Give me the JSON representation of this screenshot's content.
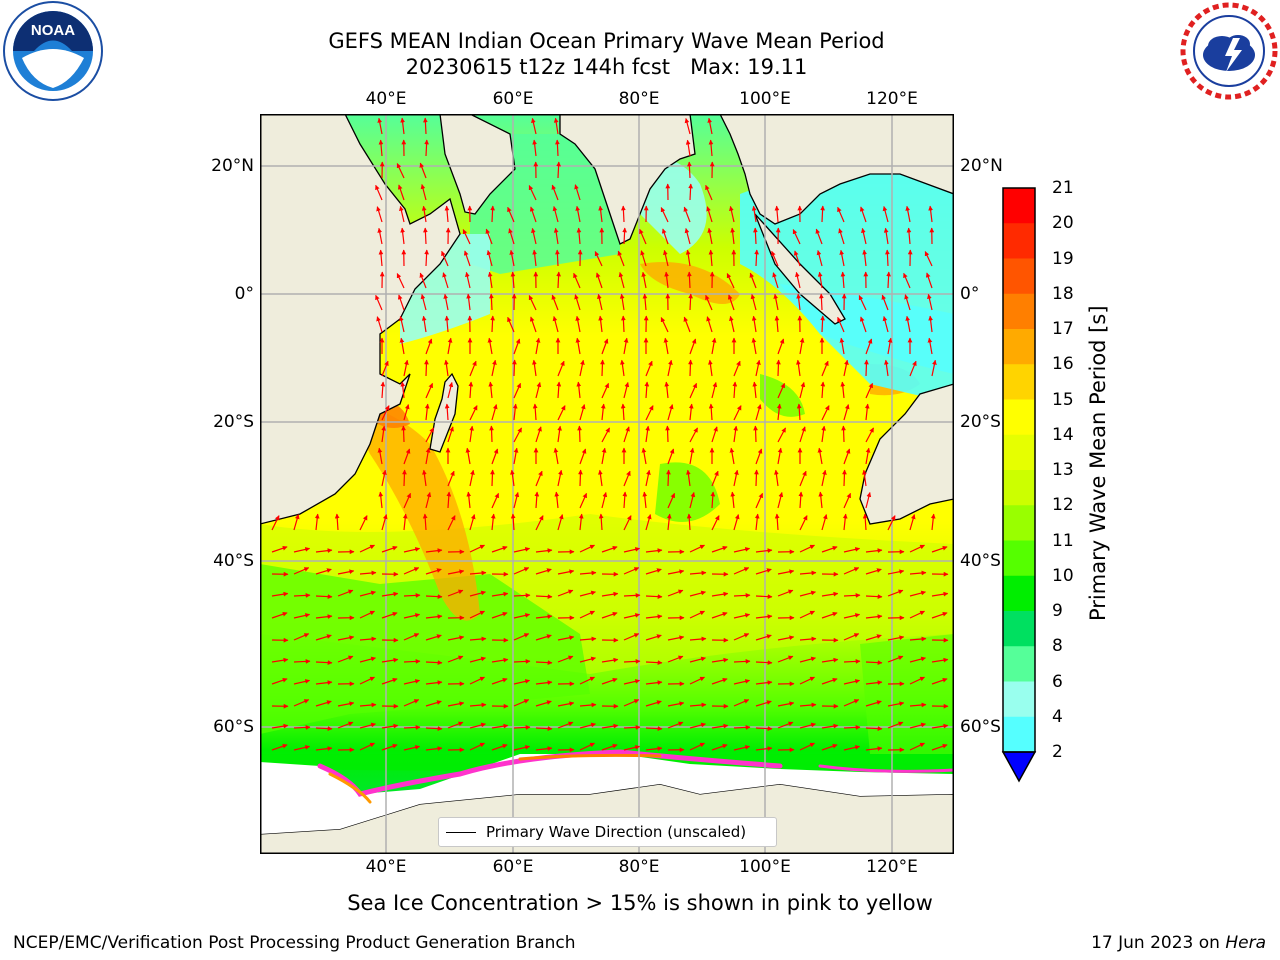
{
  "title_line1": "GEFS MEAN Indian Ocean Primary Wave Mean Period",
  "title_line2": "20230615 t12z 144h fcst   Max: 19.11",
  "lon_ticks": [
    "40°E",
    "60°E",
    "80°E",
    "100°E",
    "120°E"
  ],
  "lat_ticks_left": [
    "20°N",
    "0°",
    "20°S",
    "40°S",
    "60°S"
  ],
  "lat_ticks_right": [
    "20°N",
    "0°",
    "20°S",
    "40°S",
    "60°S"
  ],
  "colorbar": {
    "label": "Primary Wave Mean Period [s]",
    "ticks": [
      "21",
      "20",
      "19",
      "18",
      "17",
      "16",
      "15",
      "14",
      "13",
      "12",
      "11",
      "10",
      "9",
      "8",
      "6",
      "4",
      "2"
    ],
    "colors": [
      "#ff0000",
      "#ff2a00",
      "#ff5500",
      "#ff7f00",
      "#ffaa00",
      "#ffd400",
      "#ffff00",
      "#e6ff00",
      "#ccff00",
      "#99ff00",
      "#55ff00",
      "#00ee00",
      "#00e060",
      "#55ff99",
      "#99ffee",
      "#55ffff",
      "#00ffff",
      "#00d4ff",
      "#0080ff",
      "#0000ff"
    ]
  },
  "legend_label": "Primary Wave Direction (unscaled)",
  "caption": "Sea Ice Concentration > 15% is shown in pink to yellow",
  "footer_left": "NCEP/EMC/Verification Post Processing Product Generation Branch",
  "footer_right_date": "17 Jun 2023 on ",
  "footer_right_host": "Hera",
  "logos": {
    "noaa": "noaa-logo",
    "nws": "nws-logo"
  },
  "colors": {
    "land": "#efeddc",
    "ice_free_antarctic": "#ffffff",
    "arrow": "#ff0000",
    "grid": "#b0b0b0"
  }
}
